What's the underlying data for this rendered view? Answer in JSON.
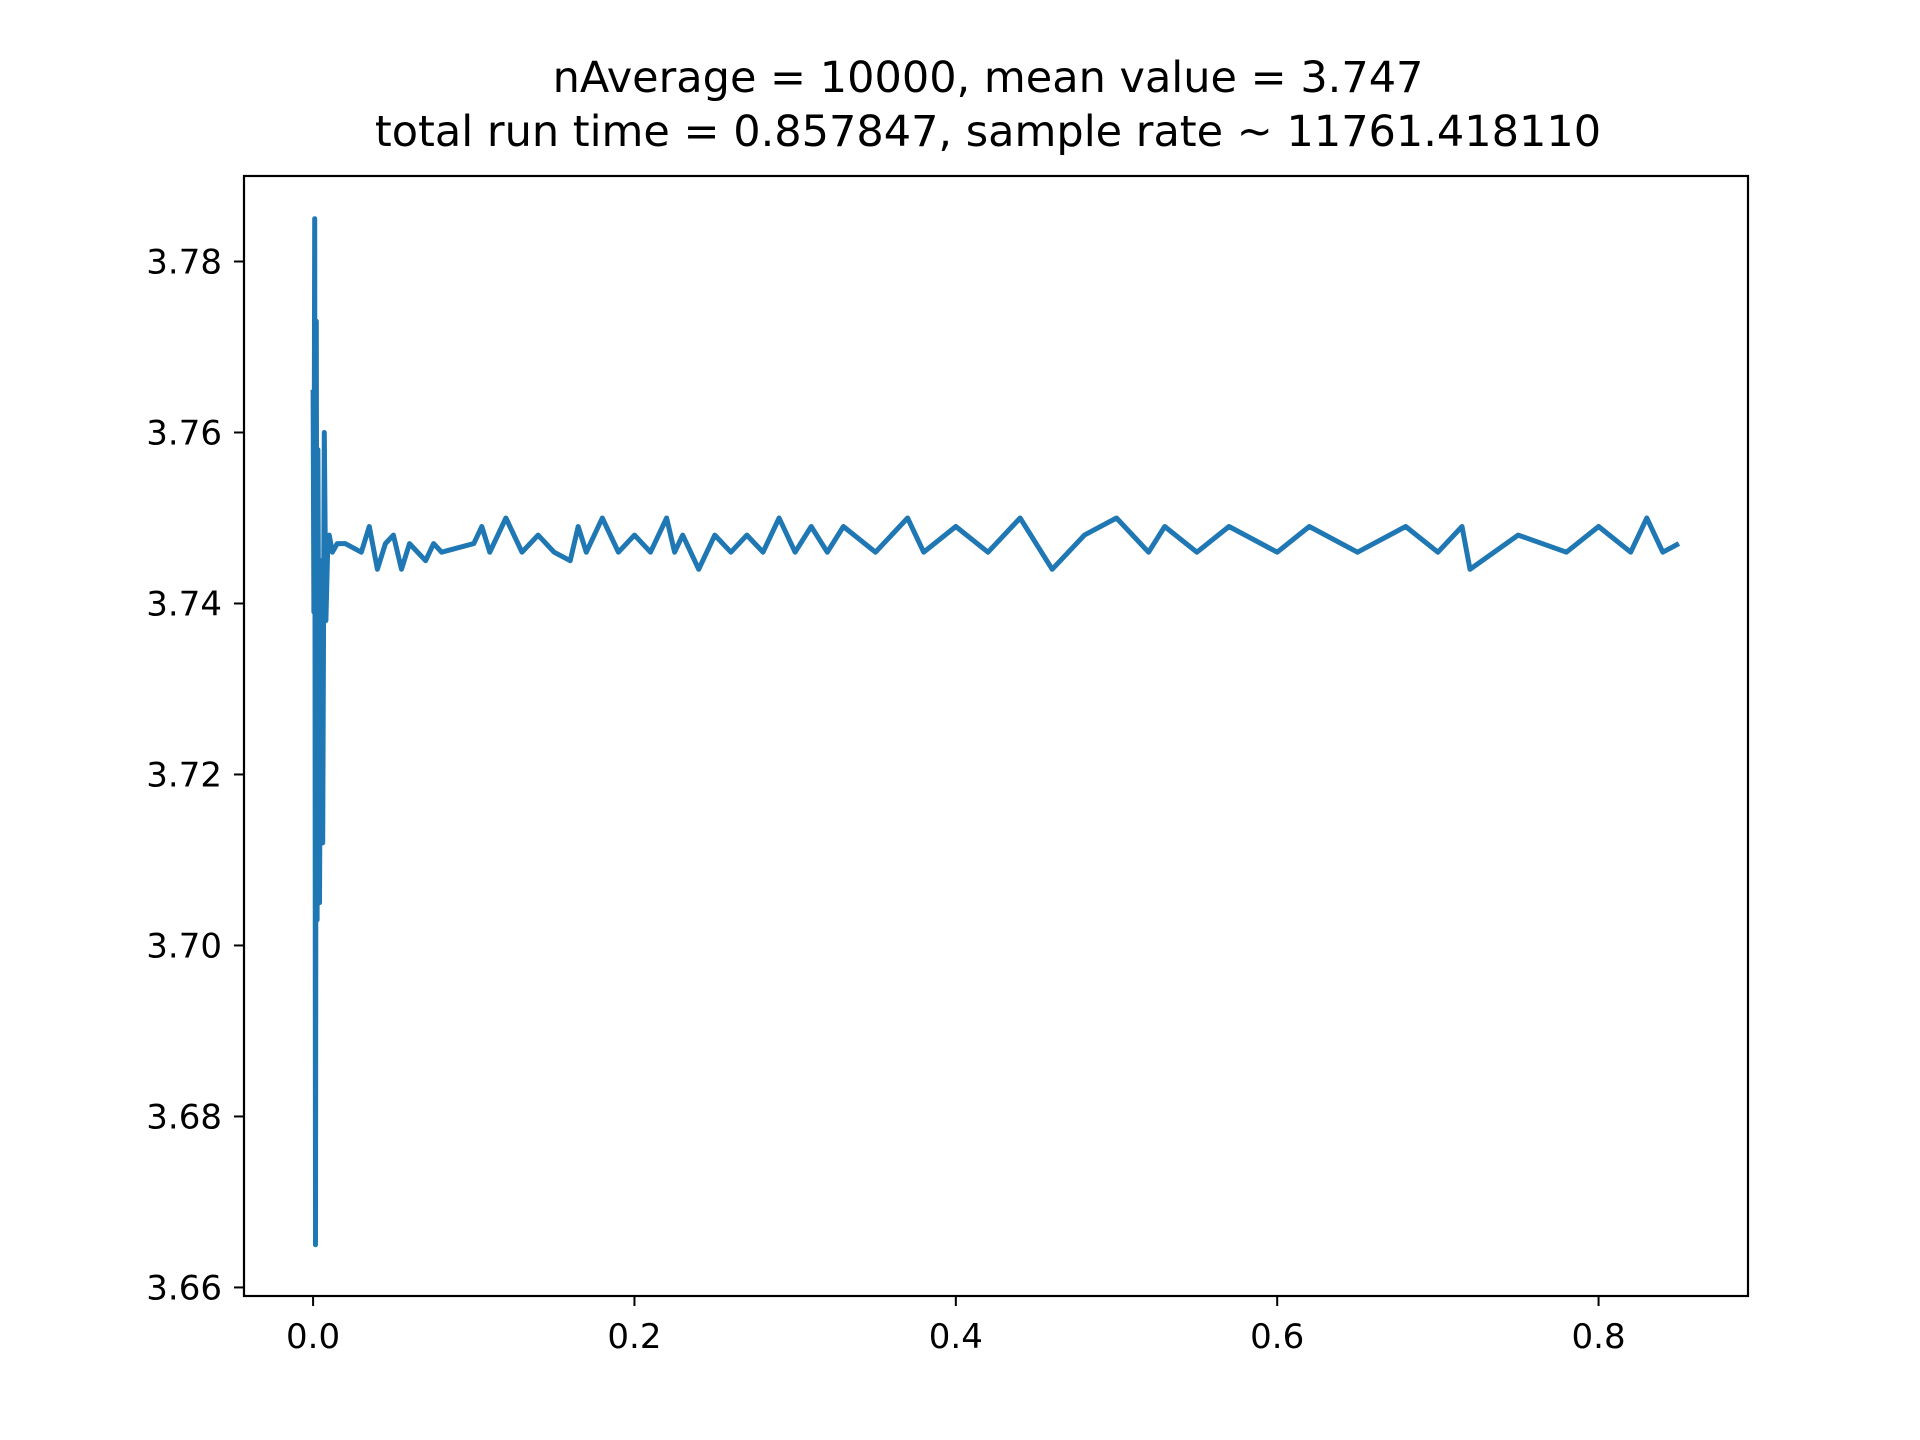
{
  "chart_data": {
    "type": "line",
    "title": "nAverage = 10000, mean value = 3.747",
    "subtitle": "total run time = 0.857847, sample rate ~ 11761.418110",
    "xlabel": "",
    "ylabel": "",
    "xlim": [
      -0.043,
      0.893
    ],
    "ylim": [
      3.659,
      3.79
    ],
    "x_ticks": [
      0.0,
      0.2,
      0.4,
      0.6,
      0.8
    ],
    "x_tick_labels": [
      "0.0",
      "0.2",
      "0.4",
      "0.6",
      "0.8"
    ],
    "y_ticks": [
      3.66,
      3.68,
      3.7,
      3.72,
      3.74,
      3.76,
      3.78
    ],
    "y_tick_labels": [
      "3.66",
      "3.68",
      "3.70",
      "3.72",
      "3.74",
      "3.76",
      "3.78"
    ],
    "grid": false,
    "legend": "none",
    "series": [
      {
        "color": "#1f77b4",
        "x": [
          0.0,
          0.0005,
          0.001,
          0.0015,
          0.002,
          0.0025,
          0.003,
          0.004,
          0.005,
          0.006,
          0.007,
          0.008,
          0.009,
          0.01,
          0.012,
          0.015,
          0.02,
          0.03,
          0.035,
          0.04,
          0.045,
          0.05,
          0.055,
          0.06,
          0.07,
          0.075,
          0.08,
          0.1,
          0.105,
          0.11,
          0.12,
          0.13,
          0.14,
          0.15,
          0.16,
          0.165,
          0.17,
          0.18,
          0.19,
          0.2,
          0.21,
          0.22,
          0.225,
          0.23,
          0.24,
          0.25,
          0.26,
          0.27,
          0.28,
          0.29,
          0.3,
          0.31,
          0.32,
          0.33,
          0.35,
          0.37,
          0.38,
          0.4,
          0.42,
          0.44,
          0.46,
          0.48,
          0.5,
          0.52,
          0.53,
          0.55,
          0.57,
          0.6,
          0.62,
          0.65,
          0.68,
          0.7,
          0.715,
          0.72,
          0.75,
          0.78,
          0.8,
          0.82,
          0.83,
          0.84,
          0.85
        ],
        "y": [
          3.765,
          3.739,
          3.785,
          3.665,
          3.773,
          3.703,
          3.758,
          3.705,
          3.745,
          3.712,
          3.76,
          3.738,
          3.746,
          3.748,
          3.746,
          3.747,
          3.747,
          3.746,
          3.749,
          3.744,
          3.747,
          3.748,
          3.744,
          3.747,
          3.745,
          3.747,
          3.746,
          3.747,
          3.749,
          3.746,
          3.75,
          3.746,
          3.748,
          3.746,
          3.745,
          3.749,
          3.746,
          3.75,
          3.746,
          3.748,
          3.746,
          3.75,
          3.746,
          3.748,
          3.744,
          3.748,
          3.746,
          3.748,
          3.746,
          3.75,
          3.746,
          3.749,
          3.746,
          3.749,
          3.746,
          3.75,
          3.746,
          3.749,
          3.746,
          3.75,
          3.744,
          3.748,
          3.75,
          3.746,
          3.749,
          3.746,
          3.749,
          3.746,
          3.749,
          3.746,
          3.749,
          3.746,
          3.749,
          3.744,
          3.748,
          3.746,
          3.749,
          3.746,
          3.75,
          3.746,
          3.747
        ]
      }
    ]
  }
}
